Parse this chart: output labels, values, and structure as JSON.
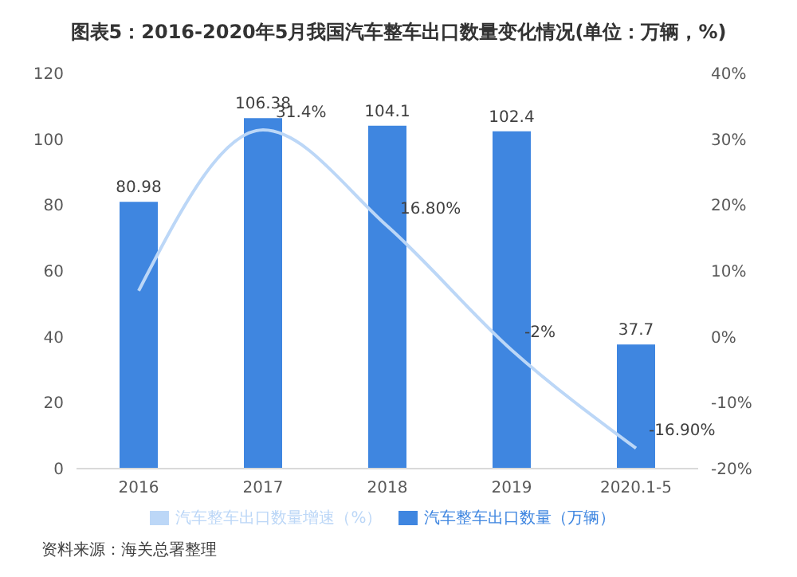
{
  "chart_data": {
    "type": "bar",
    "title": "图表5：2016-2020年5月我国汽车整车出口数量变化情况(单位：万辆，%)",
    "categories": [
      "2016",
      "2017",
      "2018",
      "2019",
      "2020.1-5"
    ],
    "series": [
      {
        "name": "汽车整车出口数量（万辆）",
        "color": "#3f86e0",
        "values": [
          80.98,
          106.38,
          104.1,
          102.4,
          37.7
        ],
        "value_labels": [
          "80.98",
          "106.38",
          "104.1",
          "102.4",
          "37.7"
        ]
      },
      {
        "name": "汽车整车出口数量增速（%）",
        "type": "line",
        "axis": "y2",
        "color": "#bcd7f7",
        "values": [
          7,
          31.4,
          16.8,
          -2,
          -16.9
        ],
        "value_labels": [
          null,
          "31.4%",
          "16.80%",
          "-2%",
          "-16.90%"
        ]
      }
    ],
    "ylim": [
      0,
      120
    ],
    "yticks": [
      0,
      20,
      40,
      60,
      80,
      100,
      120
    ],
    "y2lim": [
      -20,
      40
    ],
    "y2ticks": [
      {
        "value": -20,
        "label": "-20%"
      },
      {
        "value": -10,
        "label": "-10%"
      },
      {
        "value": 0,
        "label": "0%"
      },
      {
        "value": 10,
        "label": "10%"
      },
      {
        "value": 20,
        "label": "20%"
      },
      {
        "value": 30,
        "label": "30%"
      },
      {
        "value": 40,
        "label": "40%"
      }
    ],
    "legend": "bottom",
    "marker": "none",
    "annotations": [
      "资料来源：海关总署整理"
    ]
  }
}
